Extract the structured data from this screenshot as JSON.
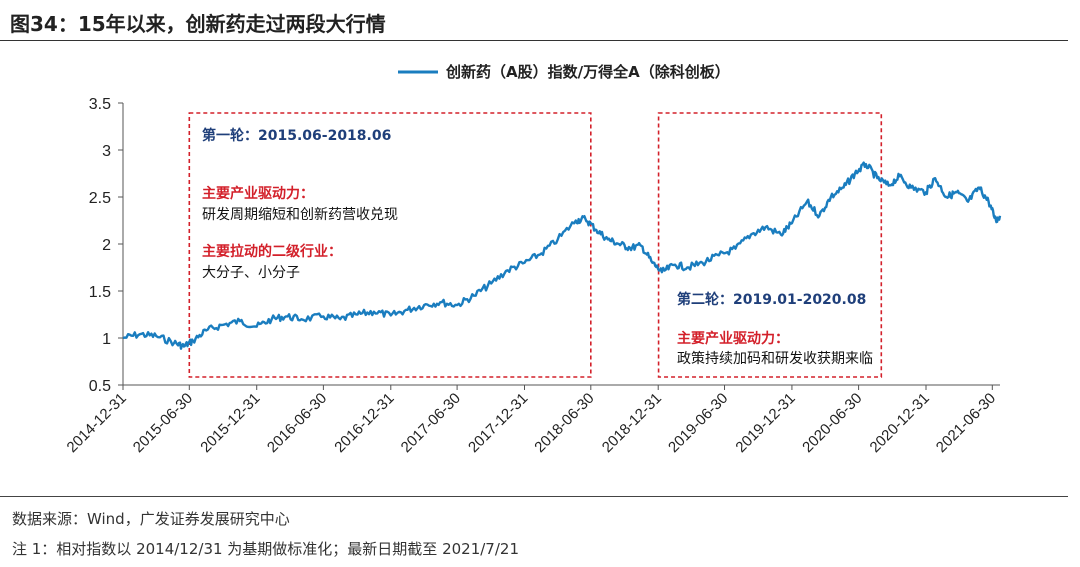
{
  "header": {
    "title": "图34：15年以来，创新药走过两段大行情"
  },
  "footer": {
    "source": "数据来源：Wind，广发证券发展研究中心",
    "note": "注 1：相对指数以 2014/12/31 为基期做标准化；最新日期截至 2021/7/21"
  },
  "colors": {
    "line": "#1a7dbf",
    "box": "#d3202a",
    "blue_text": "#1f3f7a",
    "red_text": "#d3202a"
  },
  "chart_data": {
    "type": "line",
    "legend_position": "top-center",
    "grid": false,
    "ylim": [
      0.5,
      3.5
    ],
    "yticks": [
      "0.5",
      "1",
      "1.5",
      "2",
      "2.5",
      "3",
      "3.5"
    ],
    "xticks": [
      "2014-12-31",
      "2015-06-30",
      "2015-12-31",
      "2016-06-30",
      "2016-12-31",
      "2017-06-30",
      "2017-12-31",
      "2018-06-30",
      "2018-12-31",
      "2019-06-30",
      "2019-12-31",
      "2020-06-30",
      "2020-12-31",
      "2021-06-30"
    ],
    "x_range": [
      "2014-12-31",
      "2021-07-21"
    ],
    "series": [
      {
        "name": "创新药（A股）指数/万得全A（除科创板）",
        "points": [
          [
            "2014-12-31",
            1.0
          ],
          [
            "2015-02-15",
            1.04
          ],
          [
            "2015-04-01",
            1.02
          ],
          [
            "2015-05-20",
            0.95
          ],
          [
            "2015-06-15",
            0.91
          ],
          [
            "2015-07-10",
            0.97
          ],
          [
            "2015-08-15",
            1.08
          ],
          [
            "2015-09-30",
            1.14
          ],
          [
            "2015-11-15",
            1.18
          ],
          [
            "2015-12-31",
            1.12
          ],
          [
            "2016-02-10",
            1.2
          ],
          [
            "2016-03-20",
            1.23
          ],
          [
            "2016-05-01",
            1.2
          ],
          [
            "2016-06-30",
            1.23
          ],
          [
            "2016-08-15",
            1.2
          ],
          [
            "2016-10-01",
            1.25
          ],
          [
            "2016-11-15",
            1.28
          ],
          [
            "2016-12-31",
            1.24
          ],
          [
            "2017-02-15",
            1.3
          ],
          [
            "2017-04-01",
            1.35
          ],
          [
            "2017-05-15",
            1.38
          ],
          [
            "2017-06-30",
            1.35
          ],
          [
            "2017-08-15",
            1.45
          ],
          [
            "2017-10-01",
            1.58
          ],
          [
            "2017-11-15",
            1.72
          ],
          [
            "2017-12-31",
            1.8
          ],
          [
            "2018-02-15",
            1.9
          ],
          [
            "2018-04-01",
            2.05
          ],
          [
            "2018-05-20",
            2.25
          ],
          [
            "2018-06-15",
            2.27
          ],
          [
            "2018-07-15",
            2.15
          ],
          [
            "2018-08-15",
            2.05
          ],
          [
            "2018-09-15",
            2.0
          ],
          [
            "2018-10-15",
            1.96
          ],
          [
            "2018-11-15",
            1.98
          ],
          [
            "2018-12-15",
            1.8
          ],
          [
            "2019-01-10",
            1.7
          ],
          [
            "2019-02-15",
            1.78
          ],
          [
            "2019-03-20",
            1.75
          ],
          [
            "2019-05-01",
            1.8
          ],
          [
            "2019-06-15",
            1.88
          ],
          [
            "2019-07-30",
            1.95
          ],
          [
            "2019-09-10",
            2.1
          ],
          [
            "2019-10-20",
            2.18
          ],
          [
            "2019-12-01",
            2.1
          ],
          [
            "2019-12-31",
            2.22
          ],
          [
            "2020-02-10",
            2.45
          ],
          [
            "2020-03-15",
            2.3
          ],
          [
            "2020-04-15",
            2.5
          ],
          [
            "2020-05-20",
            2.6
          ],
          [
            "2020-06-20",
            2.75
          ],
          [
            "2020-07-20",
            2.85
          ],
          [
            "2020-08-20",
            2.7
          ],
          [
            "2020-09-20",
            2.62
          ],
          [
            "2020-10-20",
            2.72
          ],
          [
            "2020-11-20",
            2.6
          ],
          [
            "2020-12-31",
            2.55
          ],
          [
            "2021-01-25",
            2.7
          ],
          [
            "2021-02-25",
            2.5
          ],
          [
            "2021-03-25",
            2.55
          ],
          [
            "2021-04-25",
            2.45
          ],
          [
            "2021-05-25",
            2.6
          ],
          [
            "2021-06-20",
            2.45
          ],
          [
            "2021-07-10",
            2.25
          ],
          [
            "2021-07-21",
            2.3
          ]
        ]
      }
    ],
    "annotations": [
      {
        "id": "round1",
        "range": [
          "2015-06-30",
          "2018-06-30"
        ],
        "title": "第一轮：2015.06-2018.06",
        "driver_label": "主要产业驱动力：",
        "driver_text": "研发周期缩短和创新药营收兑现",
        "industry_label": "主要拉动的二级行业：",
        "industry_text": "大分子、小分子"
      },
      {
        "id": "round2",
        "range": [
          "2019-01-01",
          "2020-08-31"
        ],
        "title": "第二轮：2019.01-2020.08",
        "driver_label": "主要产业驱动力：",
        "driver_text": "政策持续加码和研发收获期来临"
      }
    ]
  }
}
